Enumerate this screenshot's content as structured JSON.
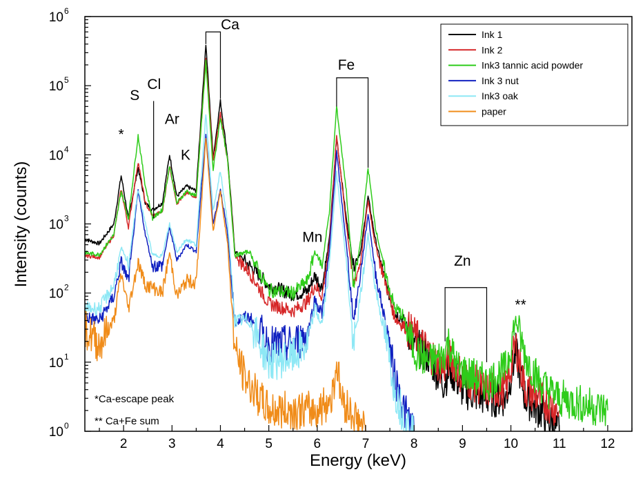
{
  "chart_data": {
    "type": "line",
    "title": "",
    "xlabel": "Energy (keV)",
    "ylabel": "Intensity (counts)",
    "xlim": [
      1.2,
      12.5
    ],
    "ylim": [
      1,
      1000000
    ],
    "yscale": "log",
    "x_ticks": [
      "2",
      "3",
      "4",
      "5",
      "6",
      "7",
      "8",
      "9",
      "10",
      "11",
      "12"
    ],
    "y_ticks": [
      {
        "base": "10",
        "exp": "0"
      },
      {
        "base": "10",
        "exp": "1"
      },
      {
        "base": "10",
        "exp": "2"
      },
      {
        "base": "10",
        "exp": "3"
      },
      {
        "base": "10",
        "exp": "4"
      },
      {
        "base": "10",
        "exp": "5"
      },
      {
        "base": "10",
        "exp": "6"
      }
    ],
    "grid": false,
    "legend_position": "top-right",
    "series": [
      {
        "name": "Ink 1",
        "color": "#000000",
        "points": [
          [
            1.2,
            600
          ],
          [
            1.5,
            520
          ],
          [
            1.8,
            1000
          ],
          [
            1.95,
            5000
          ],
          [
            2.1,
            1200
          ],
          [
            2.3,
            6500
          ],
          [
            2.45,
            2000
          ],
          [
            2.6,
            1600
          ],
          [
            2.8,
            2000
          ],
          [
            2.95,
            10000
          ],
          [
            3.1,
            2500
          ],
          [
            3.3,
            3500
          ],
          [
            3.5,
            3000
          ],
          [
            3.7,
            400000
          ],
          [
            3.85,
            9000
          ],
          [
            4.0,
            60000
          ],
          [
            4.15,
            9000
          ],
          [
            4.3,
            400
          ],
          [
            4.6,
            250
          ],
          [
            5.0,
            130
          ],
          [
            5.5,
            95
          ],
          [
            5.8,
            105
          ],
          [
            5.95,
            180
          ],
          [
            6.1,
            120
          ],
          [
            6.25,
            600
          ],
          [
            6.4,
            18000
          ],
          [
            6.6,
            1200
          ],
          [
            6.75,
            250
          ],
          [
            6.9,
            400
          ],
          [
            7.05,
            2500
          ],
          [
            7.2,
            600
          ],
          [
            7.4,
            150
          ],
          [
            7.6,
            50
          ],
          [
            7.75,
            45
          ],
          [
            8.0,
            18
          ],
          [
            8.3,
            12
          ],
          [
            8.6,
            5
          ],
          [
            8.75,
            8
          ],
          [
            9.0,
            4
          ],
          [
            9.5,
            3
          ],
          [
            9.9,
            3
          ],
          [
            10.1,
            14
          ],
          [
            10.3,
            3
          ],
          [
            10.6,
            2
          ],
          [
            11.0,
            1
          ]
        ]
      },
      {
        "name": "Ink 2",
        "color": "#d62728",
        "points": [
          [
            1.2,
            350
          ],
          [
            1.5,
            330
          ],
          [
            1.8,
            700
          ],
          [
            1.95,
            3200
          ],
          [
            2.1,
            900
          ],
          [
            2.3,
            8000
          ],
          [
            2.45,
            2000
          ],
          [
            2.6,
            1300
          ],
          [
            2.8,
            1500
          ],
          [
            2.95,
            7000
          ],
          [
            3.1,
            2000
          ],
          [
            3.3,
            2800
          ],
          [
            3.5,
            2500
          ],
          [
            3.7,
            250000
          ],
          [
            3.85,
            8000
          ],
          [
            4.0,
            40000
          ],
          [
            4.15,
            8000
          ],
          [
            4.3,
            350
          ],
          [
            4.6,
            200
          ],
          [
            5.0,
            70
          ],
          [
            5.5,
            55
          ],
          [
            5.8,
            75
          ],
          [
            5.95,
            130
          ],
          [
            6.1,
            90
          ],
          [
            6.25,
            500
          ],
          [
            6.4,
            19000
          ],
          [
            6.6,
            1000
          ],
          [
            6.75,
            130
          ],
          [
            6.9,
            300
          ],
          [
            7.05,
            2200
          ],
          [
            7.2,
            500
          ],
          [
            7.4,
            150
          ],
          [
            7.6,
            45
          ],
          [
            7.75,
            35
          ],
          [
            8.0,
            25
          ],
          [
            8.3,
            14
          ],
          [
            8.6,
            8
          ],
          [
            8.75,
            12
          ],
          [
            9.0,
            6
          ],
          [
            9.5,
            4
          ],
          [
            9.9,
            4
          ],
          [
            10.1,
            18
          ],
          [
            10.3,
            4
          ],
          [
            10.6,
            3
          ],
          [
            11.0,
            2
          ]
        ]
      },
      {
        "name": "Ink3 tannic acid powder",
        "color": "#2ecc1a",
        "points": [
          [
            1.2,
            380
          ],
          [
            1.5,
            360
          ],
          [
            1.8,
            700
          ],
          [
            1.95,
            3000
          ],
          [
            2.1,
            1200
          ],
          [
            2.3,
            19000
          ],
          [
            2.45,
            3500
          ],
          [
            2.6,
            1200
          ],
          [
            2.8,
            1600
          ],
          [
            2.95,
            7000
          ],
          [
            3.1,
            2000
          ],
          [
            3.3,
            3000
          ],
          [
            3.5,
            2500
          ],
          [
            3.7,
            220000
          ],
          [
            3.85,
            6000
          ],
          [
            4.0,
            35000
          ],
          [
            4.15,
            8000
          ],
          [
            4.3,
            350
          ],
          [
            4.6,
            400
          ],
          [
            4.8,
            200
          ],
          [
            5.0,
            110
          ],
          [
            5.5,
            100
          ],
          [
            5.8,
            150
          ],
          [
            5.95,
            400
          ],
          [
            6.1,
            250
          ],
          [
            6.25,
            1500
          ],
          [
            6.4,
            50000
          ],
          [
            6.6,
            3000
          ],
          [
            6.75,
            120
          ],
          [
            6.9,
            600
          ],
          [
            7.05,
            6500
          ],
          [
            7.2,
            900
          ],
          [
            7.4,
            200
          ],
          [
            7.6,
            60
          ],
          [
            7.75,
            50
          ],
          [
            8.0,
            15
          ],
          [
            8.3,
            10
          ],
          [
            8.6,
            12
          ],
          [
            8.7,
            20
          ],
          [
            8.9,
            8
          ],
          [
            9.5,
            5
          ],
          [
            9.9,
            8
          ],
          [
            10.1,
            40
          ],
          [
            10.3,
            12
          ],
          [
            10.6,
            5
          ],
          [
            11.0,
            3
          ],
          [
            12.0,
            2
          ]
        ]
      },
      {
        "name": "Ink 3 nut",
        "color": "#1020c0",
        "points": [
          [
            1.2,
            45
          ],
          [
            1.5,
            40
          ],
          [
            1.8,
            90
          ],
          [
            1.95,
            280
          ],
          [
            2.1,
            150
          ],
          [
            2.3,
            3000
          ],
          [
            2.45,
            700
          ],
          [
            2.6,
            250
          ],
          [
            2.8,
            250
          ],
          [
            2.95,
            900
          ],
          [
            3.1,
            300
          ],
          [
            3.3,
            500
          ],
          [
            3.5,
            400
          ],
          [
            3.7,
            20000
          ],
          [
            3.85,
            1000
          ],
          [
            4.0,
            3200
          ],
          [
            4.15,
            700
          ],
          [
            4.3,
            40
          ],
          [
            4.6,
            45
          ],
          [
            5.0,
            18
          ],
          [
            5.5,
            18
          ],
          [
            5.8,
            25
          ],
          [
            5.95,
            80
          ],
          [
            6.1,
            50
          ],
          [
            6.25,
            400
          ],
          [
            6.4,
            11000
          ],
          [
            6.6,
            500
          ],
          [
            6.75,
            40
          ],
          [
            6.9,
            200
          ],
          [
            7.05,
            1400
          ],
          [
            7.2,
            200
          ],
          [
            7.4,
            40
          ],
          [
            7.6,
            6
          ],
          [
            7.8,
            2
          ],
          [
            8.0,
            1
          ]
        ]
      },
      {
        "name": "Ink3 oak",
        "color": "#8ee8f5",
        "points": [
          [
            1.2,
            60
          ],
          [
            1.5,
            60
          ],
          [
            1.8,
            130
          ],
          [
            1.95,
            450
          ],
          [
            2.1,
            250
          ],
          [
            2.3,
            3200
          ],
          [
            2.45,
            1000
          ],
          [
            2.6,
            350
          ],
          [
            2.8,
            350
          ],
          [
            2.95,
            1000
          ],
          [
            3.1,
            400
          ],
          [
            3.3,
            600
          ],
          [
            3.5,
            500
          ],
          [
            3.7,
            40000
          ],
          [
            3.85,
            1500
          ],
          [
            4.0,
            5800
          ],
          [
            4.15,
            1000
          ],
          [
            4.3,
            40
          ],
          [
            4.6,
            40
          ],
          [
            5.0,
            10
          ],
          [
            5.5,
            12
          ],
          [
            5.8,
            18
          ],
          [
            5.95,
            60
          ],
          [
            6.1,
            35
          ],
          [
            6.25,
            250
          ],
          [
            6.4,
            5500
          ],
          [
            6.6,
            300
          ],
          [
            6.75,
            15
          ],
          [
            6.9,
            100
          ],
          [
            7.05,
            700
          ],
          [
            7.2,
            120
          ],
          [
            7.4,
            25
          ],
          [
            7.6,
            4
          ],
          [
            7.8,
            1.5
          ],
          [
            8.0,
            1
          ]
        ]
      },
      {
        "name": "paper",
        "color": "#f08c1a",
        "points": [
          [
            1.2,
            30
          ],
          [
            1.5,
            18
          ],
          [
            1.8,
            40
          ],
          [
            1.95,
            190
          ],
          [
            2.1,
            60
          ],
          [
            2.3,
            280
          ],
          [
            2.45,
            130
          ],
          [
            2.6,
            120
          ],
          [
            2.8,
            100
          ],
          [
            2.95,
            380
          ],
          [
            3.1,
            90
          ],
          [
            3.3,
            150
          ],
          [
            3.5,
            140
          ],
          [
            3.7,
            18000
          ],
          [
            3.85,
            800
          ],
          [
            4.0,
            3000
          ],
          [
            4.15,
            500
          ],
          [
            4.3,
            15
          ],
          [
            4.5,
            6
          ],
          [
            4.8,
            3
          ],
          [
            5.0,
            2
          ],
          [
            5.5,
            2
          ],
          [
            6.0,
            2
          ],
          [
            6.3,
            3
          ],
          [
            6.4,
            10
          ],
          [
            6.5,
            3
          ],
          [
            6.8,
            1.5
          ],
          [
            7.0,
            1
          ]
        ]
      }
    ],
    "annotations": [
      {
        "text": "*",
        "x": 1.95,
        "y": 17000
      },
      {
        "text": "S",
        "x": 2.23,
        "y": 62000
      },
      {
        "text": "Cl",
        "x": 2.63,
        "y": 90000
      },
      {
        "text": "Ar",
        "x": 3.0,
        "y": 28000
      },
      {
        "text": "K",
        "x": 3.28,
        "y": 8500
      },
      {
        "text": "Ca",
        "x": 4.2,
        "y": 650000
      },
      {
        "text": "Mn",
        "x": 5.9,
        "y": 550
      },
      {
        "text": "Fe",
        "x": 6.6,
        "y": 170000
      },
      {
        "text": "Zn",
        "x": 9.0,
        "y": 250
      },
      {
        "text": "**",
        "x": 10.2,
        "y": 58
      }
    ],
    "brackets": [
      {
        "label": "Ca",
        "x1": 3.7,
        "x2": 4.0,
        "top": 600000,
        "bottom1": 400000,
        "bottom2": 65000
      },
      {
        "label": "Fe",
        "x1": 6.4,
        "x2": 7.05,
        "top": 130000,
        "bottom1": 50000,
        "bottom2": 6500
      },
      {
        "label": "Zn",
        "x1": 8.64,
        "x2": 9.5,
        "top": 120,
        "bottom1": 20,
        "bottom2": 10
      }
    ],
    "cl_marker": {
      "x": 2.62,
      "top": 60000,
      "bottom": 1200
    },
    "notes": [
      "*Ca-escape peak",
      "** Ca+Fe sum"
    ]
  }
}
